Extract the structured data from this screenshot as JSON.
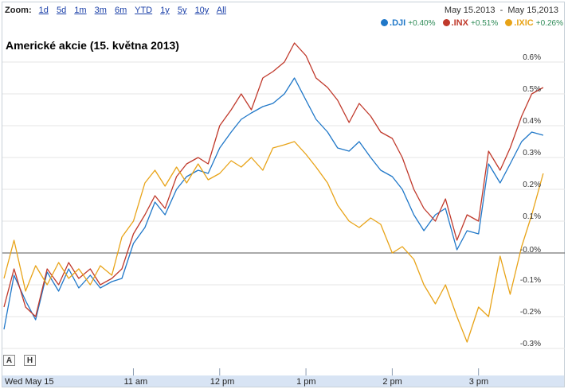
{
  "zoom": {
    "label": "Zoom:",
    "options": [
      "1d",
      "5d",
      "1m",
      "3m",
      "6m",
      "YTD",
      "1y",
      "5y",
      "10y",
      "All"
    ]
  },
  "date_range": "May 15.2013  -  May 15,2013",
  "legend": [
    {
      "symbol": ".DJI",
      "change": "+0.40%",
      "color": "#1f77c8"
    },
    {
      "symbol": ".INX",
      "change": "+0.51%",
      "color": "#c0392b"
    },
    {
      "symbol": ".IXIC",
      "change": "+0.26%",
      "color": "#e8a317"
    }
  ],
  "annotation_buttons": [
    "A",
    "H"
  ],
  "chart_data": {
    "type": "line",
    "title": "Americké akcie (15. května 2013)",
    "x_ticks": [
      "Wed May 15",
      "11 am",
      "12 pm",
      "1 pm",
      "2 pm",
      "3 pm"
    ],
    "y_ticks": [
      "0.6%",
      "0.5%",
      "0.4%",
      "0.3%",
      "0.2%",
      "0.1%",
      "-0.0%",
      "-0.1%",
      "-0.2%",
      "-0.3%"
    ],
    "ylim": [
      -0.33,
      0.65
    ],
    "grid": "horizontal",
    "series": [
      {
        "name": ".DJI",
        "color": "#1f77c8",
        "points": [
          [
            "9:30",
            -0.24
          ],
          [
            "9:37",
            -0.07
          ],
          [
            "9:45",
            -0.15
          ],
          [
            "9:52",
            -0.21
          ],
          [
            "10:00",
            -0.06
          ],
          [
            "10:08",
            -0.12
          ],
          [
            "10:15",
            -0.05
          ],
          [
            "10:22",
            -0.11
          ],
          [
            "10:30",
            -0.07
          ],
          [
            "10:37",
            -0.11
          ],
          [
            "10:45",
            -0.09
          ],
          [
            "10:52",
            -0.08
          ],
          [
            "11:00",
            0.03
          ],
          [
            "11:08",
            0.08
          ],
          [
            "11:15",
            0.16
          ],
          [
            "11:22",
            0.12
          ],
          [
            "11:30",
            0.2
          ],
          [
            "11:37",
            0.24
          ],
          [
            "11:45",
            0.26
          ],
          [
            "11:52",
            0.25
          ],
          [
            "12:00",
            0.33
          ],
          [
            "12:08",
            0.38
          ],
          [
            "12:15",
            0.42
          ],
          [
            "12:22",
            0.44
          ],
          [
            "12:30",
            0.46
          ],
          [
            "12:37",
            0.47
          ],
          [
            "12:45",
            0.5
          ],
          [
            "12:52",
            0.55
          ],
          [
            "13:00",
            0.48
          ],
          [
            "13:07",
            0.42
          ],
          [
            "13:15",
            0.38
          ],
          [
            "13:22",
            0.33
          ],
          [
            "13:30",
            0.32
          ],
          [
            "13:37",
            0.35
          ],
          [
            "13:45",
            0.3
          ],
          [
            "13:52",
            0.26
          ],
          [
            "14:00",
            0.24
          ],
          [
            "14:07",
            0.2
          ],
          [
            "14:15",
            0.12
          ],
          [
            "14:22",
            0.07
          ],
          [
            "14:30",
            0.12
          ],
          [
            "14:37",
            0.14
          ],
          [
            "14:45",
            0.01
          ],
          [
            "14:52",
            0.07
          ],
          [
            "15:00",
            0.06
          ],
          [
            "15:07",
            0.28
          ],
          [
            "15:15",
            0.22
          ],
          [
            "15:22",
            0.28
          ],
          [
            "15:30",
            0.35
          ],
          [
            "15:37",
            0.38
          ],
          [
            "15:45",
            0.37
          ]
        ]
      },
      {
        "name": ".INX",
        "color": "#c0392b",
        "points": [
          [
            "9:30",
            -0.17
          ],
          [
            "9:37",
            -0.05
          ],
          [
            "9:45",
            -0.17
          ],
          [
            "9:52",
            -0.2
          ],
          [
            "10:00",
            -0.05
          ],
          [
            "10:08",
            -0.1
          ],
          [
            "10:15",
            -0.03
          ],
          [
            "10:22",
            -0.08
          ],
          [
            "10:30",
            -0.05
          ],
          [
            "10:37",
            -0.1
          ],
          [
            "10:45",
            -0.08
          ],
          [
            "10:52",
            -0.05
          ],
          [
            "11:00",
            0.06
          ],
          [
            "11:08",
            0.12
          ],
          [
            "11:15",
            0.18
          ],
          [
            "11:22",
            0.14
          ],
          [
            "11:30",
            0.24
          ],
          [
            "11:37",
            0.28
          ],
          [
            "11:45",
            0.3
          ],
          [
            "11:52",
            0.28
          ],
          [
            "12:00",
            0.4
          ],
          [
            "12:08",
            0.45
          ],
          [
            "12:15",
            0.5
          ],
          [
            "12:22",
            0.45
          ],
          [
            "12:30",
            0.55
          ],
          [
            "12:37",
            0.57
          ],
          [
            "12:45",
            0.6
          ],
          [
            "12:52",
            0.66
          ],
          [
            "13:00",
            0.62
          ],
          [
            "13:07",
            0.55
          ],
          [
            "13:15",
            0.52
          ],
          [
            "13:22",
            0.48
          ],
          [
            "13:30",
            0.41
          ],
          [
            "13:37",
            0.47
          ],
          [
            "13:45",
            0.43
          ],
          [
            "13:52",
            0.38
          ],
          [
            "14:00",
            0.36
          ],
          [
            "14:07",
            0.3
          ],
          [
            "14:15",
            0.2
          ],
          [
            "14:22",
            0.14
          ],
          [
            "14:30",
            0.1
          ],
          [
            "14:37",
            0.17
          ],
          [
            "14:45",
            0.04
          ],
          [
            "14:52",
            0.12
          ],
          [
            "15:00",
            0.1
          ],
          [
            "15:07",
            0.32
          ],
          [
            "15:15",
            0.26
          ],
          [
            "15:22",
            0.33
          ],
          [
            "15:30",
            0.43
          ],
          [
            "15:37",
            0.5
          ],
          [
            "15:45",
            0.52
          ]
        ]
      },
      {
        "name": ".IXIC",
        "color": "#e8a317",
        "points": [
          [
            "9:30",
            -0.08
          ],
          [
            "9:37",
            0.04
          ],
          [
            "9:45",
            -0.12
          ],
          [
            "9:52",
            -0.04
          ],
          [
            "10:00",
            -0.1
          ],
          [
            "10:08",
            -0.03
          ],
          [
            "10:15",
            -0.08
          ],
          [
            "10:22",
            -0.05
          ],
          [
            "10:30",
            -0.1
          ],
          [
            "10:37",
            -0.04
          ],
          [
            "10:45",
            -0.07
          ],
          [
            "10:52",
            0.05
          ],
          [
            "11:00",
            0.1
          ],
          [
            "11:08",
            0.22
          ],
          [
            "11:15",
            0.26
          ],
          [
            "11:22",
            0.21
          ],
          [
            "11:30",
            0.27
          ],
          [
            "11:37",
            0.22
          ],
          [
            "11:45",
            0.28
          ],
          [
            "11:52",
            0.23
          ],
          [
            "12:00",
            0.25
          ],
          [
            "12:08",
            0.29
          ],
          [
            "12:15",
            0.27
          ],
          [
            "12:22",
            0.3
          ],
          [
            "12:30",
            0.26
          ],
          [
            "12:37",
            0.33
          ],
          [
            "12:45",
            0.34
          ],
          [
            "12:52",
            0.35
          ],
          [
            "13:00",
            0.31
          ],
          [
            "13:07",
            0.27
          ],
          [
            "13:15",
            0.22
          ],
          [
            "13:22",
            0.15
          ],
          [
            "13:30",
            0.1
          ],
          [
            "13:37",
            0.08
          ],
          [
            "13:45",
            0.11
          ],
          [
            "13:52",
            0.09
          ],
          [
            "14:00",
            0.0
          ],
          [
            "14:07",
            0.02
          ],
          [
            "14:15",
            -0.02
          ],
          [
            "14:22",
            -0.1
          ],
          [
            "14:30",
            -0.16
          ],
          [
            "14:37",
            -0.1
          ],
          [
            "14:45",
            -0.2
          ],
          [
            "14:52",
            -0.28
          ],
          [
            "15:00",
            -0.17
          ],
          [
            "15:07",
            -0.2
          ],
          [
            "15:15",
            -0.01
          ],
          [
            "15:22",
            -0.13
          ],
          [
            "15:30",
            0.02
          ],
          [
            "15:37",
            0.12
          ],
          [
            "15:45",
            0.25
          ]
        ]
      }
    ]
  }
}
